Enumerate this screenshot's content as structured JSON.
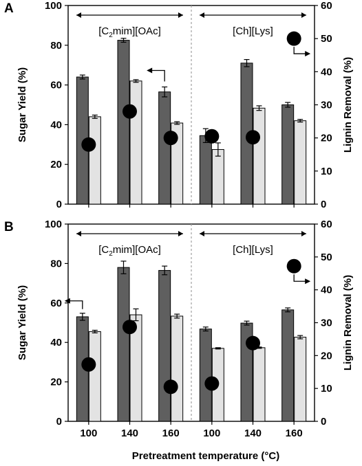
{
  "colors": {
    "sugar_bar": "#5f5f5f",
    "lignin_bar": "#e3e3e3",
    "marker": "#000000",
    "divider": "#a0a0a0"
  },
  "shared_xlabel": "Pretreatment temperature (°C)",
  "chart_data": [
    {
      "type": "bar",
      "panel_label": "A",
      "categories": [
        "100",
        "140",
        "160",
        "100",
        "140",
        "160"
      ],
      "groups": [
        {
          "label": "[C2mim][OAc]",
          "label_main": "[C",
          "label_sub": "2",
          "label_rest": "mim][OAc]",
          "categories_index": [
            0,
            1,
            2
          ]
        },
        {
          "label": "[Ch][Lys]",
          "label_main": "[Ch][Lys]",
          "label_sub": "",
          "label_rest": "",
          "categories_index": [
            3,
            4,
            5
          ]
        }
      ],
      "series": [
        {
          "values": [
            64,
            82.5,
            56.5,
            34.5,
            71,
            50
          ],
          "errors": [
            1,
            1,
            2.5,
            3.5,
            1.8,
            1.2
          ],
          "axis": "left"
        },
        {
          "values": [
            26.4,
            37.2,
            24.5,
            16.5,
            29,
            25.2
          ],
          "errors": [
            0.5,
            0.4,
            0.4,
            2,
            0.7,
            0.4
          ],
          "axis": "right"
        },
        {
          "values": [
            18,
            28,
            20,
            20.5,
            20.2,
            50
          ],
          "axis": "right",
          "style": "marker"
        }
      ],
      "ylabel": "Sugar Yield (%)",
      "ylim": [
        0,
        100
      ],
      "yticks": [
        "0",
        "20",
        "40",
        "60",
        "80",
        "100"
      ],
      "y2label": "Lignin Removal (%)",
      "y2lim": [
        0,
        60
      ],
      "y2ticks": [
        "0",
        "10",
        "20",
        "30",
        "40",
        "50",
        "60"
      ],
      "axis_indicators": [
        "left",
        "right"
      ]
    },
    {
      "type": "bar",
      "panel_label": "B",
      "categories": [
        "100",
        "140",
        "160",
        "100",
        "140",
        "160"
      ],
      "groups": [
        {
          "label": "[C2mim][OAc]",
          "label_main": "[C",
          "label_sub": "2",
          "label_rest": "mim][OAc]",
          "categories_index": [
            0,
            1,
            2
          ]
        },
        {
          "label": "[Ch][Lys]",
          "label_main": "[Ch][Lys]",
          "label_sub": "",
          "label_rest": "",
          "categories_index": [
            3,
            4,
            5
          ]
        }
      ],
      "series": [
        {
          "values": [
            53,
            78,
            76.5,
            46.8,
            49.8,
            56.5
          ],
          "errors": [
            1.8,
            3.2,
            2.2,
            1,
            1,
            1
          ],
          "axis": "left"
        },
        {
          "values": [
            27.3,
            32.4,
            32,
            22.2,
            22.4,
            25.6
          ],
          "errors": [
            0.4,
            1.8,
            0.6,
            0.2,
            0.2,
            0.5
          ],
          "axis": "right"
        },
        {
          "values": [
            17.3,
            28.7,
            10.5,
            11.5,
            23.8,
            47.2
          ],
          "axis": "right",
          "style": "marker"
        }
      ],
      "ylabel": "Sugar Yield (%)",
      "ylim": [
        0,
        100
      ],
      "yticks": [
        "0",
        "20",
        "40",
        "60",
        "80",
        "100"
      ],
      "y2label": "Lignin Removal (%)",
      "y2lim": [
        0,
        60
      ],
      "y2ticks": [
        "0",
        "10",
        "20",
        "30",
        "40",
        "50",
        "60"
      ],
      "axis_indicators": [
        "left",
        "right"
      ]
    }
  ]
}
